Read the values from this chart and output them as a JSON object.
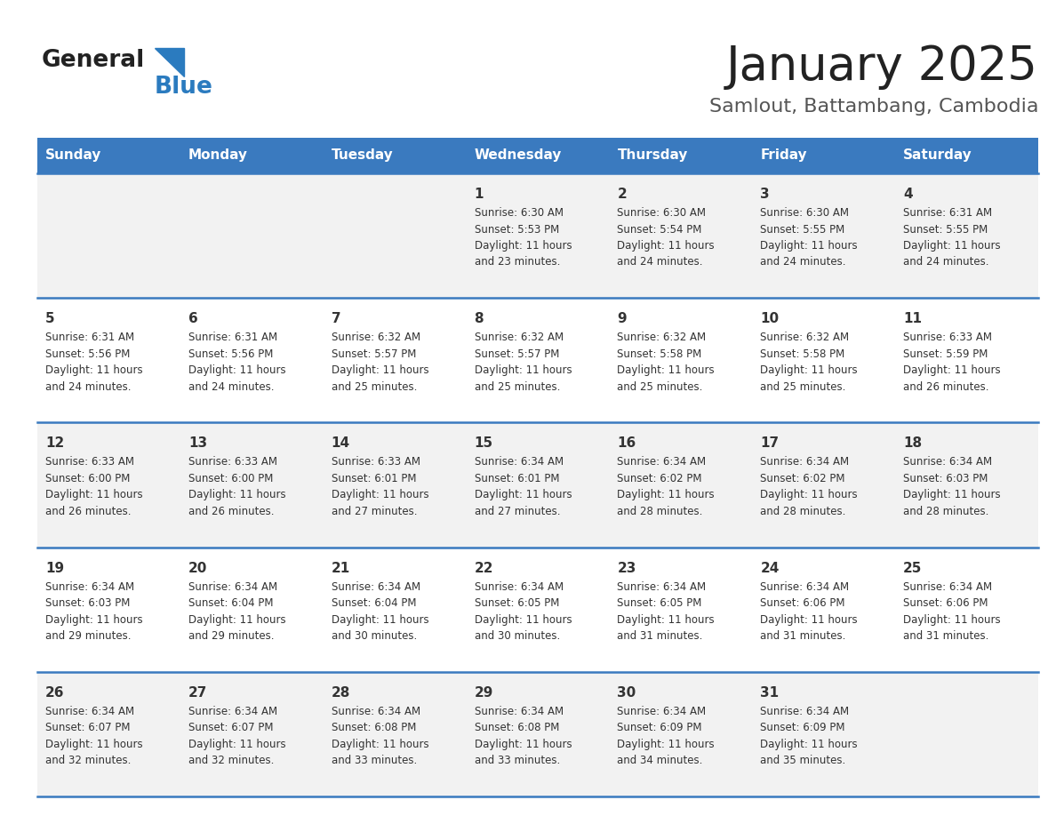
{
  "title": "January 2025",
  "subtitle": "Samlout, Battambang, Cambodia",
  "days_of_week": [
    "Sunday",
    "Monday",
    "Tuesday",
    "Wednesday",
    "Thursday",
    "Friday",
    "Saturday"
  ],
  "header_bg": "#3a7abf",
  "header_text": "#ffffff",
  "row_bg_even": "#f2f2f2",
  "row_bg_odd": "#ffffff",
  "day_num_color": "#333333",
  "text_color": "#333333",
  "separator_color": "#3a7abf",
  "background_color": "#ffffff",
  "logo_general_color": "#222222",
  "logo_blue_color": "#2b7bbf",
  "logo_triangle_color": "#2b7bbf",
  "title_color": "#222222",
  "subtitle_color": "#555555",
  "calendar_data": [
    [
      {
        "day": null,
        "info": null
      },
      {
        "day": null,
        "info": null
      },
      {
        "day": null,
        "info": null
      },
      {
        "day": "1",
        "info": "Sunrise: 6:30 AM\nSunset: 5:53 PM\nDaylight: 11 hours\nand 23 minutes."
      },
      {
        "day": "2",
        "info": "Sunrise: 6:30 AM\nSunset: 5:54 PM\nDaylight: 11 hours\nand 24 minutes."
      },
      {
        "day": "3",
        "info": "Sunrise: 6:30 AM\nSunset: 5:55 PM\nDaylight: 11 hours\nand 24 minutes."
      },
      {
        "day": "4",
        "info": "Sunrise: 6:31 AM\nSunset: 5:55 PM\nDaylight: 11 hours\nand 24 minutes."
      }
    ],
    [
      {
        "day": "5",
        "info": "Sunrise: 6:31 AM\nSunset: 5:56 PM\nDaylight: 11 hours\nand 24 minutes."
      },
      {
        "day": "6",
        "info": "Sunrise: 6:31 AM\nSunset: 5:56 PM\nDaylight: 11 hours\nand 24 minutes."
      },
      {
        "day": "7",
        "info": "Sunrise: 6:32 AM\nSunset: 5:57 PM\nDaylight: 11 hours\nand 25 minutes."
      },
      {
        "day": "8",
        "info": "Sunrise: 6:32 AM\nSunset: 5:57 PM\nDaylight: 11 hours\nand 25 minutes."
      },
      {
        "day": "9",
        "info": "Sunrise: 6:32 AM\nSunset: 5:58 PM\nDaylight: 11 hours\nand 25 minutes."
      },
      {
        "day": "10",
        "info": "Sunrise: 6:32 AM\nSunset: 5:58 PM\nDaylight: 11 hours\nand 25 minutes."
      },
      {
        "day": "11",
        "info": "Sunrise: 6:33 AM\nSunset: 5:59 PM\nDaylight: 11 hours\nand 26 minutes."
      }
    ],
    [
      {
        "day": "12",
        "info": "Sunrise: 6:33 AM\nSunset: 6:00 PM\nDaylight: 11 hours\nand 26 minutes."
      },
      {
        "day": "13",
        "info": "Sunrise: 6:33 AM\nSunset: 6:00 PM\nDaylight: 11 hours\nand 26 minutes."
      },
      {
        "day": "14",
        "info": "Sunrise: 6:33 AM\nSunset: 6:01 PM\nDaylight: 11 hours\nand 27 minutes."
      },
      {
        "day": "15",
        "info": "Sunrise: 6:34 AM\nSunset: 6:01 PM\nDaylight: 11 hours\nand 27 minutes."
      },
      {
        "day": "16",
        "info": "Sunrise: 6:34 AM\nSunset: 6:02 PM\nDaylight: 11 hours\nand 28 minutes."
      },
      {
        "day": "17",
        "info": "Sunrise: 6:34 AM\nSunset: 6:02 PM\nDaylight: 11 hours\nand 28 minutes."
      },
      {
        "day": "18",
        "info": "Sunrise: 6:34 AM\nSunset: 6:03 PM\nDaylight: 11 hours\nand 28 minutes."
      }
    ],
    [
      {
        "day": "19",
        "info": "Sunrise: 6:34 AM\nSunset: 6:03 PM\nDaylight: 11 hours\nand 29 minutes."
      },
      {
        "day": "20",
        "info": "Sunrise: 6:34 AM\nSunset: 6:04 PM\nDaylight: 11 hours\nand 29 minutes."
      },
      {
        "day": "21",
        "info": "Sunrise: 6:34 AM\nSunset: 6:04 PM\nDaylight: 11 hours\nand 30 minutes."
      },
      {
        "day": "22",
        "info": "Sunrise: 6:34 AM\nSunset: 6:05 PM\nDaylight: 11 hours\nand 30 minutes."
      },
      {
        "day": "23",
        "info": "Sunrise: 6:34 AM\nSunset: 6:05 PM\nDaylight: 11 hours\nand 31 minutes."
      },
      {
        "day": "24",
        "info": "Sunrise: 6:34 AM\nSunset: 6:06 PM\nDaylight: 11 hours\nand 31 minutes."
      },
      {
        "day": "25",
        "info": "Sunrise: 6:34 AM\nSunset: 6:06 PM\nDaylight: 11 hours\nand 31 minutes."
      }
    ],
    [
      {
        "day": "26",
        "info": "Sunrise: 6:34 AM\nSunset: 6:07 PM\nDaylight: 11 hours\nand 32 minutes."
      },
      {
        "day": "27",
        "info": "Sunrise: 6:34 AM\nSunset: 6:07 PM\nDaylight: 11 hours\nand 32 minutes."
      },
      {
        "day": "28",
        "info": "Sunrise: 6:34 AM\nSunset: 6:08 PM\nDaylight: 11 hours\nand 33 minutes."
      },
      {
        "day": "29",
        "info": "Sunrise: 6:34 AM\nSunset: 6:08 PM\nDaylight: 11 hours\nand 33 minutes."
      },
      {
        "day": "30",
        "info": "Sunrise: 6:34 AM\nSunset: 6:09 PM\nDaylight: 11 hours\nand 34 minutes."
      },
      {
        "day": "31",
        "info": "Sunrise: 6:34 AM\nSunset: 6:09 PM\nDaylight: 11 hours\nand 35 minutes."
      },
      {
        "day": null,
        "info": null
      }
    ]
  ]
}
